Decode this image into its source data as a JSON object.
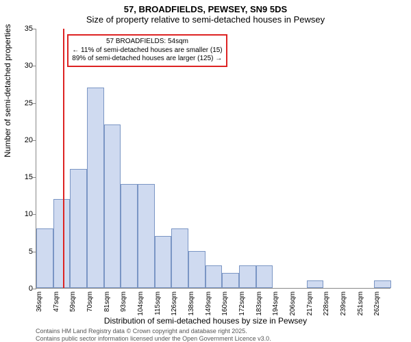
{
  "title_line1": "57, BROADFIELDS, PEWSEY, SN9 5DS",
  "title_line2": "Size of property relative to semi-detached houses in Pewsey",
  "ylabel": "Number of semi-detached properties",
  "xlabel": "Distribution of semi-detached houses by size in Pewsey",
  "footer_line1": "Contains HM Land Registry data © Crown copyright and database right 2025.",
  "footer_line2": "Contains public sector information licensed under the Open Government Licence v3.0.",
  "chart": {
    "type": "histogram",
    "ylim": [
      0,
      35
    ],
    "ytick_step": 5,
    "bar_fill": "#cfdaf0",
    "bar_stroke": "#7a95c4",
    "marker_color": "#d22",
    "marker_x_value": 54,
    "background": "#ffffff",
    "bin_width_sqm": 11.3,
    "categories_labels": [
      "36sqm",
      "47sqm",
      "59sqm",
      "70sqm",
      "81sqm",
      "93sqm",
      "104sqm",
      "115sqm",
      "126sqm",
      "138sqm",
      "149sqm",
      "160sqm",
      "172sqm",
      "183sqm",
      "194sqm",
      "206sqm",
      "217sqm",
      "228sqm",
      "239sqm",
      "251sqm",
      "262sqm"
    ],
    "values": [
      8,
      12,
      16,
      27,
      22,
      14,
      14,
      7,
      8,
      5,
      3,
      2,
      3,
      3,
      0,
      0,
      1,
      0,
      0,
      0,
      1
    ],
    "annotation": {
      "line1": "57 BROADFIELDS: 54sqm",
      "line2": "← 11% of semi-detached houses are smaller (15)",
      "line3": "89% of semi-detached houses are larger (125) →"
    },
    "title_fontsize": 13,
    "label_fontsize": 12,
    "tick_fontsize": 11,
    "xtick_fontsize": 10,
    "anno_fontsize": 10
  }
}
